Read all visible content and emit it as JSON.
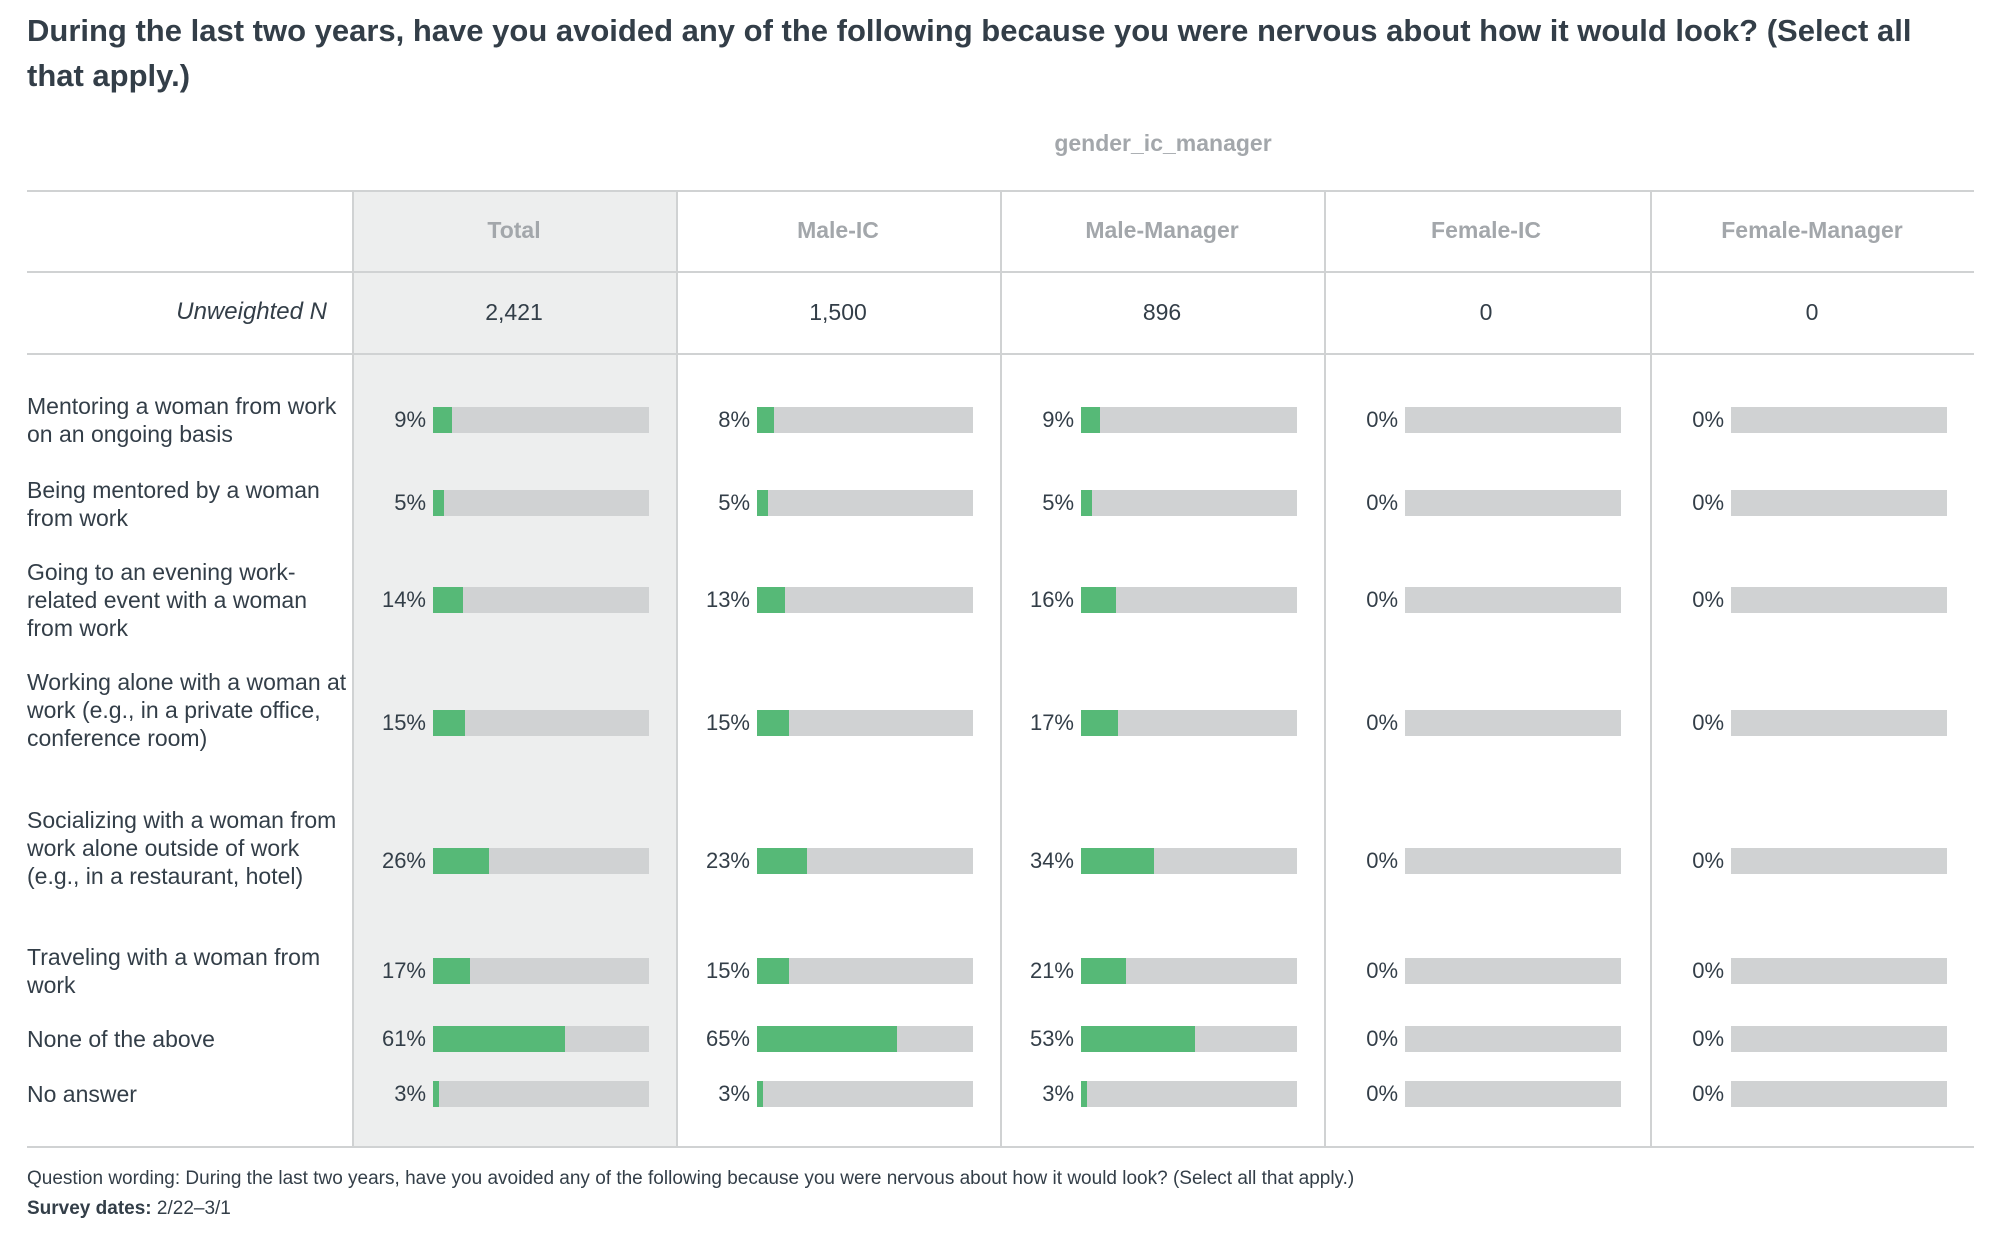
{
  "title": "During the last two years, have you avoided any of the following because you were nervous about how it would look? (Select all that apply.)",
  "group_header": "gender_ic_manager",
  "unweighted_n_label": "Unweighted N",
  "columns": [
    {
      "label": "Total",
      "n": "2,421"
    },
    {
      "label": "Male-IC",
      "n": "1,500"
    },
    {
      "label": "Male-Manager",
      "n": "896"
    },
    {
      "label": "Female-IC",
      "n": "0"
    },
    {
      "label": "Female-Manager",
      "n": "0"
    }
  ],
  "rows": [
    {
      "label": "Mentoring a woman from work on an ongoing basis",
      "values": [
        "9%",
        "8%",
        "9%",
        "0%",
        "0%"
      ]
    },
    {
      "label": "Being mentored by a woman from work",
      "values": [
        "5%",
        "5%",
        "5%",
        "0%",
        "0%"
      ]
    },
    {
      "label": "Going to an evening work-related event with a woman from work",
      "values": [
        "14%",
        "13%",
        "16%",
        "0%",
        "0%"
      ]
    },
    {
      "label": "Working alone with a woman at work (e.g., in a private office, conference room)",
      "values": [
        "15%",
        "15%",
        "17%",
        "0%",
        "0%"
      ]
    },
    {
      "label": "Socializing with a woman from work alone outside of work (e.g., in a restaurant, hotel)",
      "values": [
        "26%",
        "23%",
        "34%",
        "0%",
        "0%"
      ]
    },
    {
      "label": "Traveling with a woman from work",
      "values": [
        "17%",
        "15%",
        "21%",
        "0%",
        "0%"
      ]
    },
    {
      "label": "None of the above",
      "values": [
        "61%",
        "65%",
        "53%",
        "0%",
        "0%"
      ]
    },
    {
      "label": "No answer",
      "values": [
        "3%",
        "3%",
        "3%",
        "0%",
        "0%"
      ]
    }
  ],
  "footer": {
    "wording": "Question wording: During the last two years, have you avoided any of the following because you were nervous about how it would look? (Select all that apply.)",
    "dates_label": "Survey dates:",
    "dates_value": "2/22–3/1"
  },
  "colors": {
    "bar": "#56b977",
    "track": "#d0d2d3",
    "total_bg": "#edeeee"
  },
  "chart_data": {
    "type": "bar",
    "title": "During the last two years, have you avoided any of the following because you were nervous about how it would look? (Select all that apply.)",
    "categories": [
      "Mentoring a woman from work on an ongoing basis",
      "Being mentored by a woman from work",
      "Going to an evening work-related event with a woman from work",
      "Working alone with a woman at work (e.g., in a private office, conference room)",
      "Socializing with a woman from work alone outside of work (e.g., in a restaurant, hotel)",
      "Traveling with a woman from work",
      "None of the above",
      "No answer"
    ],
    "series": [
      {
        "name": "Total",
        "values": [
          9,
          5,
          14,
          15,
          26,
          17,
          61,
          3
        ]
      },
      {
        "name": "Male-IC",
        "values": [
          8,
          5,
          13,
          15,
          23,
          15,
          65,
          3
        ]
      },
      {
        "name": "Male-Manager",
        "values": [
          9,
          5,
          16,
          17,
          34,
          21,
          53,
          3
        ]
      },
      {
        "name": "Female-IC",
        "values": [
          0,
          0,
          0,
          0,
          0,
          0,
          0,
          0
        ]
      },
      {
        "name": "Female-Manager",
        "values": [
          0,
          0,
          0,
          0,
          0,
          0,
          0,
          0
        ]
      }
    ],
    "xlabel": "",
    "ylabel": "",
    "ylim": [
      0,
      100
    ]
  }
}
